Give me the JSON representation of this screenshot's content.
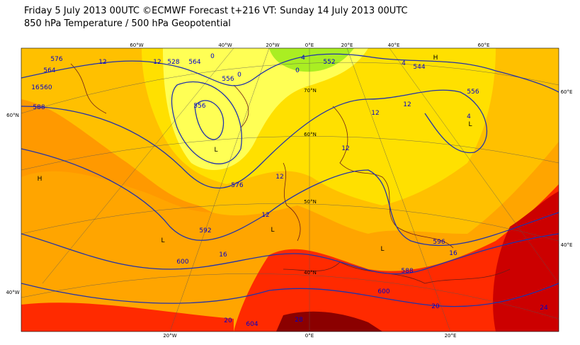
{
  "header": {
    "line1": "Friday 5 July 2013 00UTC ©ECMWF Forecast t+216 VT: Sunday 14 July 2013 00UTC",
    "line2": "850 hPa Temperature / 500 hPa Geopotential"
  },
  "graticule_labels": [
    "60°W",
    "40°W",
    "20°W",
    "0°E",
    "20°E",
    "40°E",
    "60°E",
    "60°E",
    "60°N",
    "70°N",
    "60°N",
    "50°N",
    "40°N",
    "40°E",
    "40°W",
    "20°W",
    "0°E",
    "20°E"
  ],
  "contour_labels": [
    "576",
    "12",
    "564",
    "16",
    "560",
    "588",
    "12",
    "528",
    "564",
    "0",
    "556",
    "0",
    "4",
    "552",
    "0",
    "4",
    "544",
    "556",
    "4",
    "556",
    "12",
    "12",
    "576",
    "12",
    "12",
    "12",
    "592",
    "16",
    "600",
    "596",
    "16",
    "588",
    "600",
    "20",
    "24",
    "20",
    "604",
    "28"
  ],
  "pressure_centers": [
    "H",
    "L",
    "L",
    "H",
    "L",
    "L",
    "L"
  ]
}
